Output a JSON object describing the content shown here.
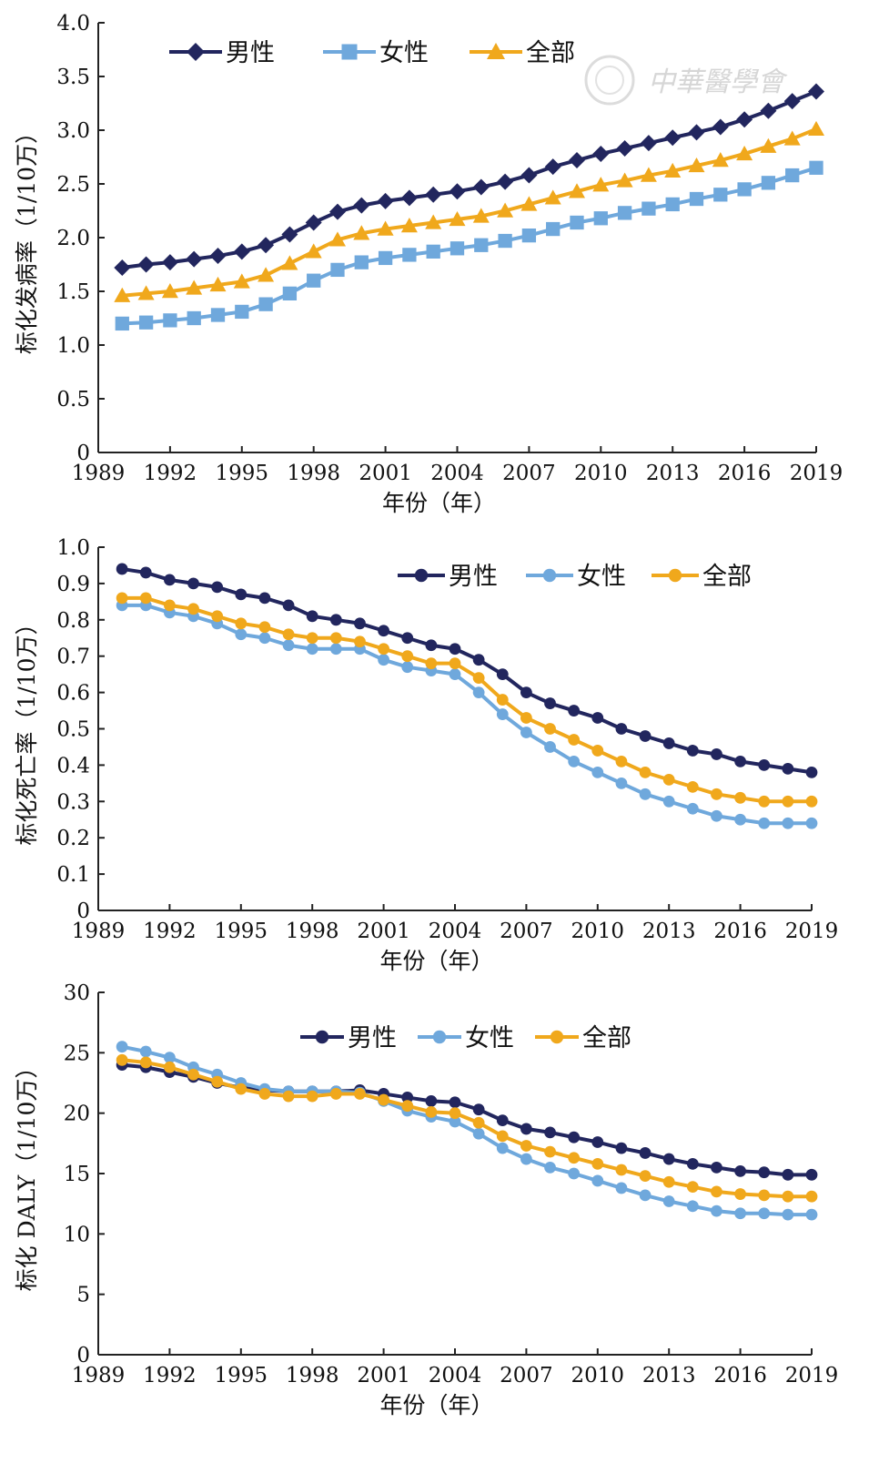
{
  "watermark": "中華醫學會",
  "colors": {
    "male": "#22265e",
    "female": "#6fa8dc",
    "all": "#f0a81c",
    "axis": "#222222"
  },
  "chart_data": [
    {
      "type": "line",
      "ylabel": "标化发病率（1/10万）",
      "xlabel": "年份（年）",
      "ylim": [
        0,
        4.0
      ],
      "yticks": [
        0,
        0.5,
        1.0,
        1.5,
        2.0,
        2.5,
        3.0,
        3.5,
        4.0
      ],
      "ytick_labels": [
        "0",
        "0.5",
        "1.0",
        "1.5",
        "2.0",
        "2.5",
        "3.0",
        "3.5",
        "4.0"
      ],
      "xticks": [
        "1989",
        "1992",
        "1995",
        "1998",
        "2001",
        "2004",
        "2007",
        "2010",
        "2013",
        "2016",
        "2019"
      ],
      "legend_position": "top",
      "x": [
        1990,
        1991,
        1992,
        1993,
        1994,
        1995,
        1996,
        1997,
        1998,
        1999,
        2000,
        2001,
        2002,
        2003,
        2004,
        2005,
        2006,
        2007,
        2008,
        2009,
        2010,
        2011,
        2012,
        2013,
        2014,
        2015,
        2016,
        2017,
        2018,
        2019
      ],
      "series": [
        {
          "name": "男性",
          "marker": "diamond",
          "color_key": "male",
          "values": [
            1.72,
            1.75,
            1.77,
            1.8,
            1.83,
            1.87,
            1.93,
            2.03,
            2.14,
            2.24,
            2.3,
            2.34,
            2.37,
            2.4,
            2.43,
            2.47,
            2.52,
            2.58,
            2.66,
            2.72,
            2.78,
            2.83,
            2.88,
            2.93,
            2.98,
            3.03,
            3.1,
            3.18,
            3.27,
            3.36
          ]
        },
        {
          "name": "女性",
          "marker": "square",
          "color_key": "female",
          "values": [
            1.2,
            1.21,
            1.23,
            1.25,
            1.28,
            1.31,
            1.38,
            1.48,
            1.6,
            1.7,
            1.77,
            1.81,
            1.84,
            1.87,
            1.9,
            1.93,
            1.97,
            2.02,
            2.08,
            2.14,
            2.18,
            2.23,
            2.27,
            2.31,
            2.36,
            2.4,
            2.45,
            2.51,
            2.58,
            2.65
          ]
        },
        {
          "name": "全部",
          "marker": "triangle",
          "color_key": "all",
          "values": [
            1.46,
            1.48,
            1.5,
            1.53,
            1.56,
            1.59,
            1.65,
            1.76,
            1.87,
            1.98,
            2.04,
            2.08,
            2.11,
            2.14,
            2.17,
            2.2,
            2.25,
            2.31,
            2.37,
            2.43,
            2.49,
            2.53,
            2.58,
            2.62,
            2.67,
            2.72,
            2.78,
            2.85,
            2.92,
            3.01
          ]
        }
      ]
    },
    {
      "type": "line",
      "ylabel": "标化死亡率（1/10万）",
      "xlabel": "年份（年）",
      "ylim": [
        0,
        1.0
      ],
      "yticks": [
        0,
        0.1,
        0.2,
        0.3,
        0.4,
        0.5,
        0.6,
        0.7,
        0.8,
        0.9,
        1.0
      ],
      "ytick_labels": [
        "0",
        "0.1",
        "0.2",
        "0.3",
        "0.4",
        "0.5",
        "0.6",
        "0.7",
        "0.8",
        "0.9",
        "1.0"
      ],
      "xticks": [
        "1989",
        "1992",
        "1995",
        "1998",
        "2001",
        "2004",
        "2007",
        "2010",
        "2013",
        "2016",
        "2019"
      ],
      "legend_position": "top-right",
      "x": [
        1990,
        1991,
        1992,
        1993,
        1994,
        1995,
        1996,
        1997,
        1998,
        1999,
        2000,
        2001,
        2002,
        2003,
        2004,
        2005,
        2006,
        2007,
        2008,
        2009,
        2010,
        2011,
        2012,
        2013,
        2014,
        2015,
        2016,
        2017,
        2018,
        2019
      ],
      "series": [
        {
          "name": "男性",
          "marker": "circle",
          "color_key": "male",
          "values": [
            0.94,
            0.93,
            0.91,
            0.9,
            0.89,
            0.87,
            0.86,
            0.84,
            0.81,
            0.8,
            0.79,
            0.77,
            0.75,
            0.73,
            0.72,
            0.69,
            0.65,
            0.6,
            0.57,
            0.55,
            0.53,
            0.5,
            0.48,
            0.46,
            0.44,
            0.43,
            0.41,
            0.4,
            0.39,
            0.38
          ]
        },
        {
          "name": "女性",
          "marker": "circle",
          "color_key": "female",
          "values": [
            0.84,
            0.84,
            0.82,
            0.81,
            0.79,
            0.76,
            0.75,
            0.73,
            0.72,
            0.72,
            0.72,
            0.69,
            0.67,
            0.66,
            0.65,
            0.6,
            0.54,
            0.49,
            0.45,
            0.41,
            0.38,
            0.35,
            0.32,
            0.3,
            0.28,
            0.26,
            0.25,
            0.24,
            0.24,
            0.24
          ]
        },
        {
          "name": "全部",
          "marker": "circle",
          "color_key": "all",
          "values": [
            0.86,
            0.86,
            0.84,
            0.83,
            0.81,
            0.79,
            0.78,
            0.76,
            0.75,
            0.75,
            0.74,
            0.72,
            0.7,
            0.68,
            0.68,
            0.64,
            0.58,
            0.53,
            0.5,
            0.47,
            0.44,
            0.41,
            0.38,
            0.36,
            0.34,
            0.32,
            0.31,
            0.3,
            0.3,
            0.3
          ]
        }
      ]
    },
    {
      "type": "line",
      "ylabel": "标化 DALY（1/10万）",
      "xlabel": "年份（年）",
      "ylim": [
        0,
        30
      ],
      "yticks": [
        0,
        5,
        10,
        15,
        20,
        25,
        30
      ],
      "ytick_labels": [
        "0",
        "5",
        "10",
        "15",
        "20",
        "25",
        "30"
      ],
      "xticks": [
        "1989",
        "1992",
        "1995",
        "1998",
        "2001",
        "2004",
        "2007",
        "2010",
        "2013",
        "2016",
        "2019"
      ],
      "legend_position": "top",
      "x": [
        1990,
        1991,
        1992,
        1993,
        1994,
        1995,
        1996,
        1997,
        1998,
        1999,
        2000,
        2001,
        2002,
        2003,
        2004,
        2005,
        2006,
        2007,
        2008,
        2009,
        2010,
        2011,
        2012,
        2013,
        2014,
        2015,
        2016,
        2017,
        2018,
        2019
      ],
      "series": [
        {
          "name": "男性",
          "marker": "circle",
          "color_key": "male",
          "values": [
            24.0,
            23.8,
            23.4,
            23.0,
            22.5,
            22.1,
            21.9,
            21.8,
            21.8,
            21.8,
            21.9,
            21.6,
            21.3,
            21.0,
            20.9,
            20.3,
            19.4,
            18.7,
            18.4,
            18.0,
            17.6,
            17.1,
            16.7,
            16.2,
            15.8,
            15.5,
            15.2,
            15.1,
            14.9,
            14.9
          ]
        },
        {
          "name": "女性",
          "marker": "circle",
          "color_key": "female",
          "values": [
            25.5,
            25.1,
            24.6,
            23.8,
            23.2,
            22.5,
            22.0,
            21.8,
            21.8,
            21.8,
            21.7,
            21.0,
            20.2,
            19.7,
            19.3,
            18.3,
            17.1,
            16.2,
            15.5,
            15.0,
            14.4,
            13.8,
            13.2,
            12.7,
            12.3,
            11.9,
            11.7,
            11.7,
            11.6,
            11.6
          ]
        },
        {
          "name": "全部",
          "marker": "circle",
          "color_key": "all",
          "values": [
            24.4,
            24.2,
            23.8,
            23.2,
            22.6,
            22.0,
            21.6,
            21.4,
            21.4,
            21.6,
            21.6,
            21.1,
            20.6,
            20.1,
            20.0,
            19.2,
            18.1,
            17.3,
            16.8,
            16.3,
            15.8,
            15.3,
            14.8,
            14.3,
            13.9,
            13.5,
            13.3,
            13.2,
            13.1,
            13.1
          ]
        }
      ]
    }
  ]
}
